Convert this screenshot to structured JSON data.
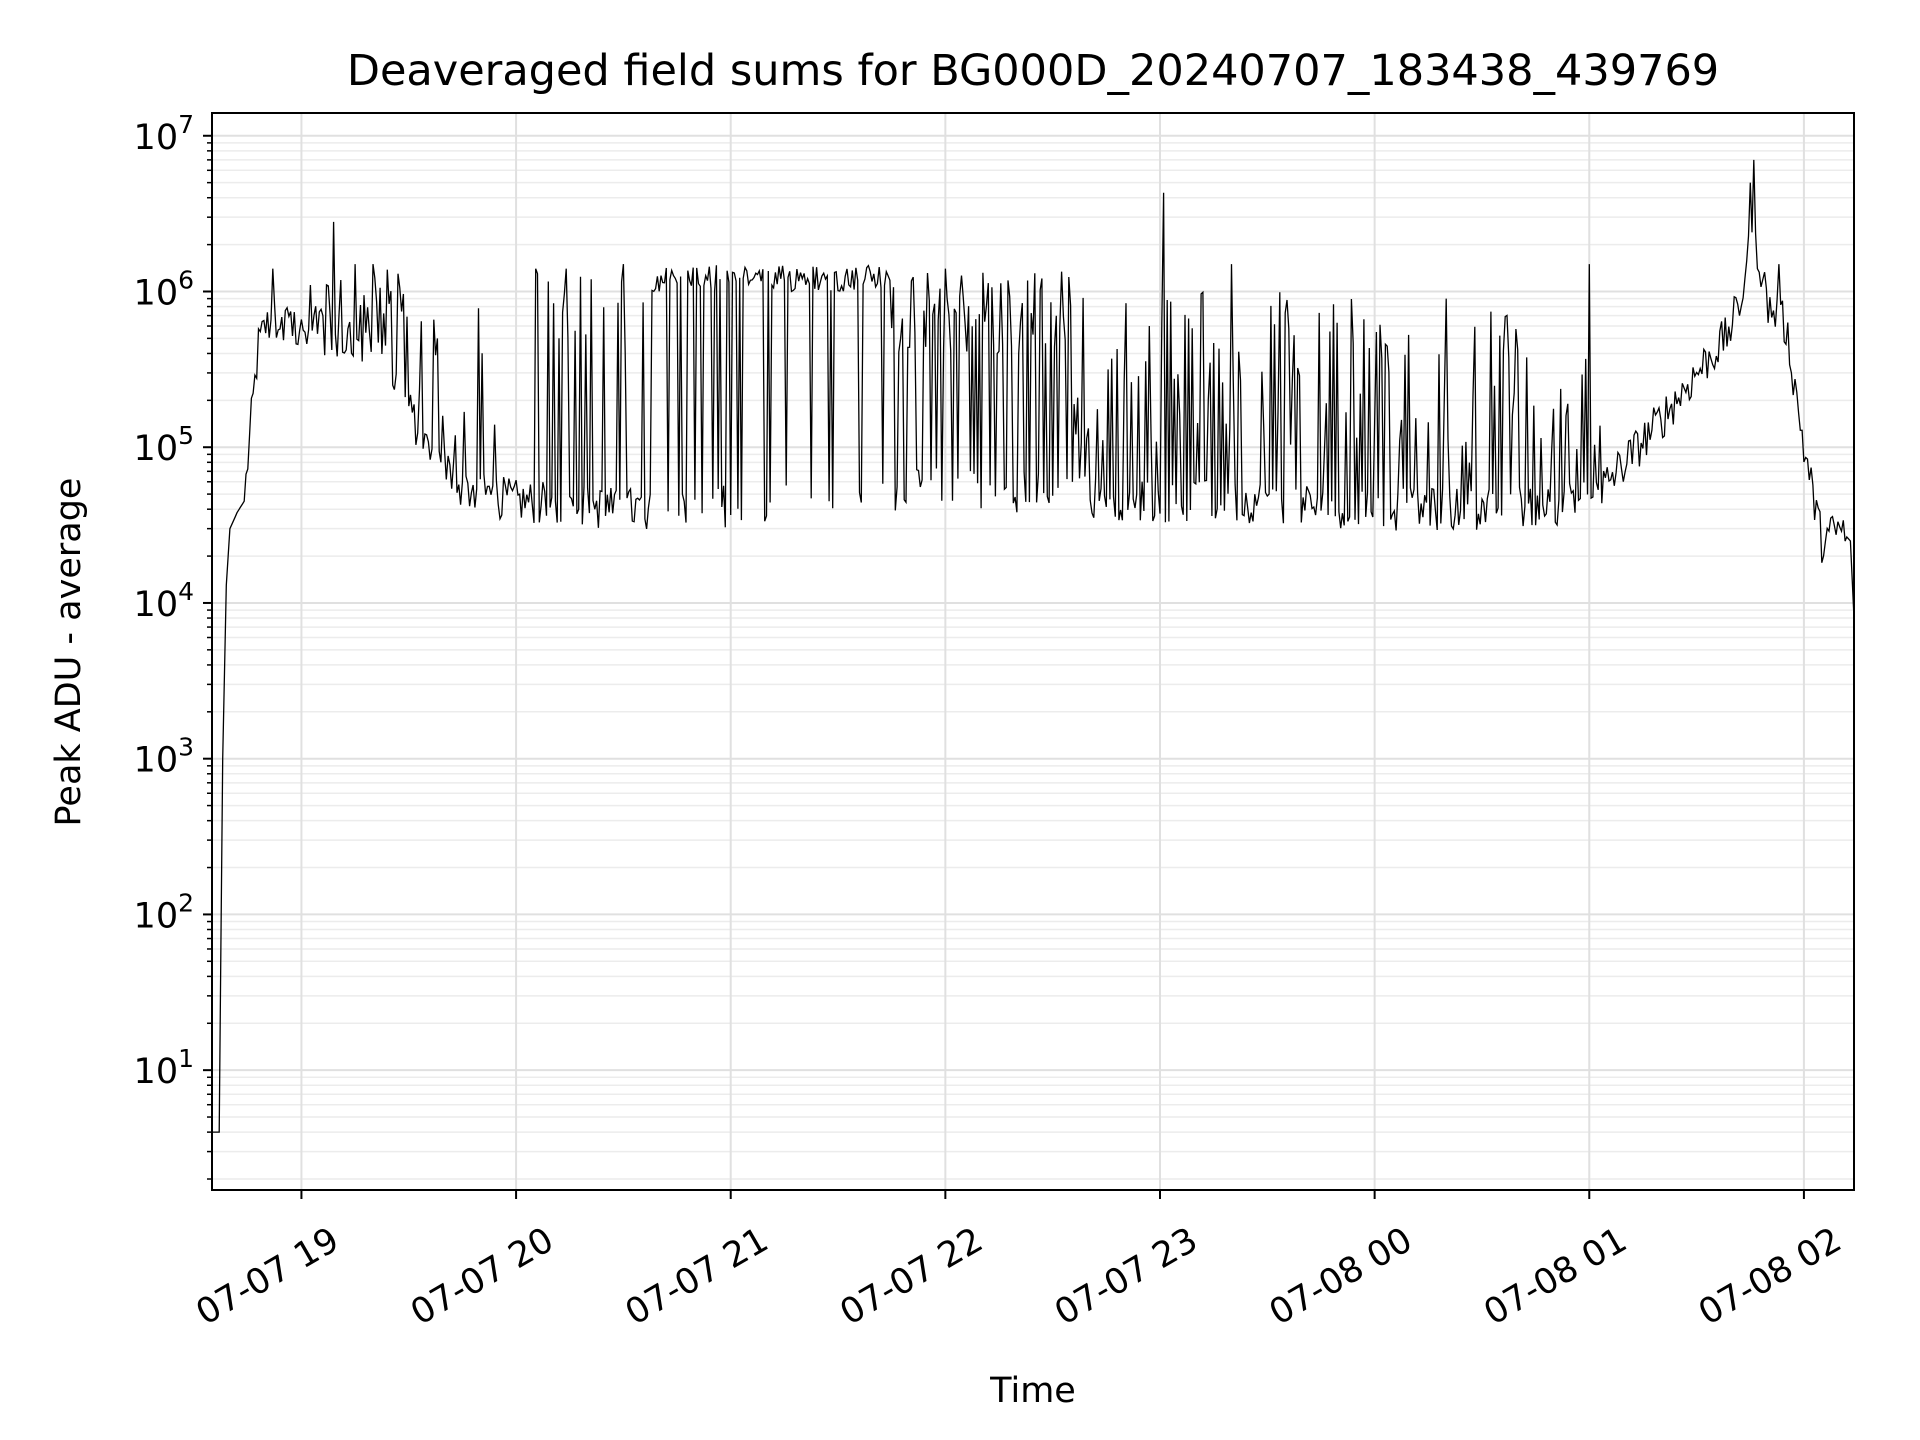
{
  "chart_data": {
    "type": "line",
    "title": "Deaveraged field sums for BG000D_20240707_183438_439769",
    "xlabel": "Time",
    "ylabel": "Peak ADU - average",
    "yscale": "log",
    "ylim": [
      1.7,
      14000000
    ],
    "xlim": [
      "2024-07-07T18:35",
      "2024-07-08T02:14"
    ],
    "grid": true,
    "line_color": "#000000",
    "x_ticks": [
      {
        "label": "07-07 19",
        "t": "2024-07-07T19:00"
      },
      {
        "label": "07-07 20",
        "t": "2024-07-07T20:00"
      },
      {
        "label": "07-07 21",
        "t": "2024-07-07T21:00"
      },
      {
        "label": "07-07 22",
        "t": "2024-07-07T22:00"
      },
      {
        "label": "07-07 23",
        "t": "2024-07-07T23:00"
      },
      {
        "label": "07-08 00",
        "t": "2024-07-08T00:00"
      },
      {
        "label": "07-08 01",
        "t": "2024-07-08T01:00"
      },
      {
        "label": "07-08 02",
        "t": "2024-07-08T02:00"
      }
    ],
    "y_ticks": [
      {
        "base": "10",
        "exp": "1",
        "value": 10
      },
      {
        "base": "10",
        "exp": "2",
        "value": 100
      },
      {
        "base": "10",
        "exp": "3",
        "value": 1000
      },
      {
        "base": "10",
        "exp": "4",
        "value": 10000
      },
      {
        "base": "10",
        "exp": "5",
        "value": 100000
      },
      {
        "base": "10",
        "exp": "6",
        "value": 1000000
      },
      {
        "base": "10",
        "exp": "7",
        "value": 10000000
      }
    ],
    "series": [
      {
        "baseline": {
          "x": [
            "2024-07-07T18:35",
            "2024-07-07T18:36",
            "2024-07-07T18:37",
            "2024-07-07T18:38",
            "2024-07-07T18:39",
            "2024-07-07T18:40",
            "2024-07-07T18:42",
            "2024-07-07T18:44",
            "2024-07-07T18:46",
            "2024-07-07T18:48",
            "2024-07-07T18:50",
            "2024-07-07T18:53",
            "2024-07-07T18:56",
            "2024-07-07T19:00",
            "2024-07-07T19:10",
            "2024-07-07T19:20",
            "2024-07-07T19:25",
            "2024-07-07T19:35",
            "2024-07-07T19:45",
            "2024-07-07T20:00",
            "2024-07-07T20:30",
            "2024-07-07T21:00",
            "2024-07-07T21:30",
            "2024-07-07T22:00",
            "2024-07-07T22:30",
            "2024-07-07T23:00",
            "2024-07-07T23:30",
            "2024-07-08T00:00",
            "2024-07-08T00:30",
            "2024-07-08T01:00",
            "2024-07-08T01:10",
            "2024-07-08T01:20",
            "2024-07-08T01:30",
            "2024-07-08T01:38",
            "2024-07-08T01:42",
            "2024-07-08T01:44",
            "2024-07-08T01:46",
            "2024-07-08T01:50",
            "2024-07-08T01:55",
            "2024-07-08T02:00",
            "2024-07-08T02:05",
            "2024-07-08T02:10",
            "2024-07-08T02:13",
            "2024-07-08T02:14"
          ],
          "y": [
            4,
            4,
            4,
            1000,
            13000,
            30000,
            38000,
            45000,
            150000,
            450000,
            600000,
            650000,
            580000,
            600000,
            500000,
            400000,
            300000,
            100000,
            55000,
            45000,
            40000,
            42000,
            45000,
            55000,
            50000,
            45000,
            45000,
            40000,
            40000,
            45000,
            80000,
            150000,
            300000,
            500000,
            800000,
            1500000,
            2500000,
            800000,
            600000,
            100000,
            25000,
            30000,
            25000,
            8000
          ]
        },
        "spikes": [
          {
            "t": "2024-07-07T18:52",
            "v": 1400000
          },
          {
            "t": "2024-07-07T19:09",
            "v": 2800000
          },
          {
            "t": "2024-07-07T19:15",
            "v": 1500000
          },
          {
            "t": "2024-07-07T19:20",
            "v": 1500000
          },
          {
            "t": "2024-07-07T19:27",
            "v": 1300000
          },
          {
            "t": "2024-07-07T19:38",
            "v": 500000
          },
          {
            "t": "2024-07-07T20:06",
            "v": 1300000
          },
          {
            "t": "2024-07-07T20:14",
            "v": 1400000
          },
          {
            "t": "2024-07-07T20:21",
            "v": 1200000
          },
          {
            "t": "2024-07-07T20:30",
            "v": 1500000
          },
          {
            "t": "2024-07-07T22:00",
            "v": 1400000
          },
          {
            "t": "2024-07-07T23:01",
            "v": 4300000
          },
          {
            "t": "2024-07-07T23:20",
            "v": 1500000
          },
          {
            "t": "2024-07-08T00:20",
            "v": 900000
          },
          {
            "t": "2024-07-08T01:00",
            "v": 1500000
          },
          {
            "t": "2024-07-08T01:45",
            "v": 5000000
          },
          {
            "t": "2024-07-08T01:46",
            "v": 7000000
          },
          {
            "t": "2024-07-08T01:53",
            "v": 1500000
          }
        ]
      }
    ]
  }
}
